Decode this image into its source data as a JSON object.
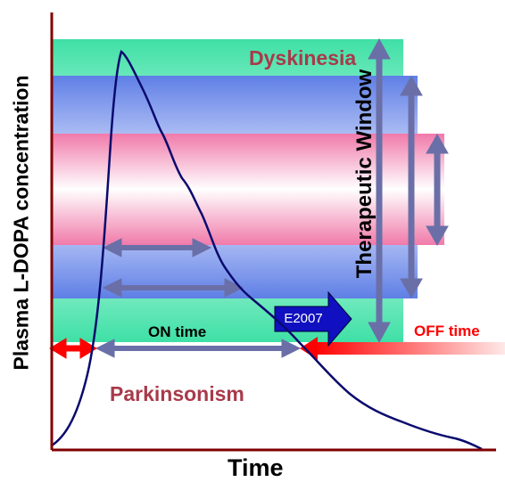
{
  "labels": {
    "y_axis": "Plasma L-DOPA concentration",
    "x_axis": "Time",
    "therapeutic_window": "Therapeutic Window",
    "dyskinesia": "Dyskinesia",
    "parkinsonism": "Parkinsonism",
    "on_time": "ON time",
    "off_time": "OFF time",
    "drug": "E2007"
  },
  "colors": {
    "band_outer": "#3fe0a6",
    "band_middle": "#5f7fe6",
    "band_inner": "#f07aaa",
    "curve": "#0a0a6e",
    "arrows": "#6a6fa8",
    "off_arrow": "#ff0000",
    "drug_arrow": "#1010c0",
    "label_red": "#a83a4a"
  }
}
